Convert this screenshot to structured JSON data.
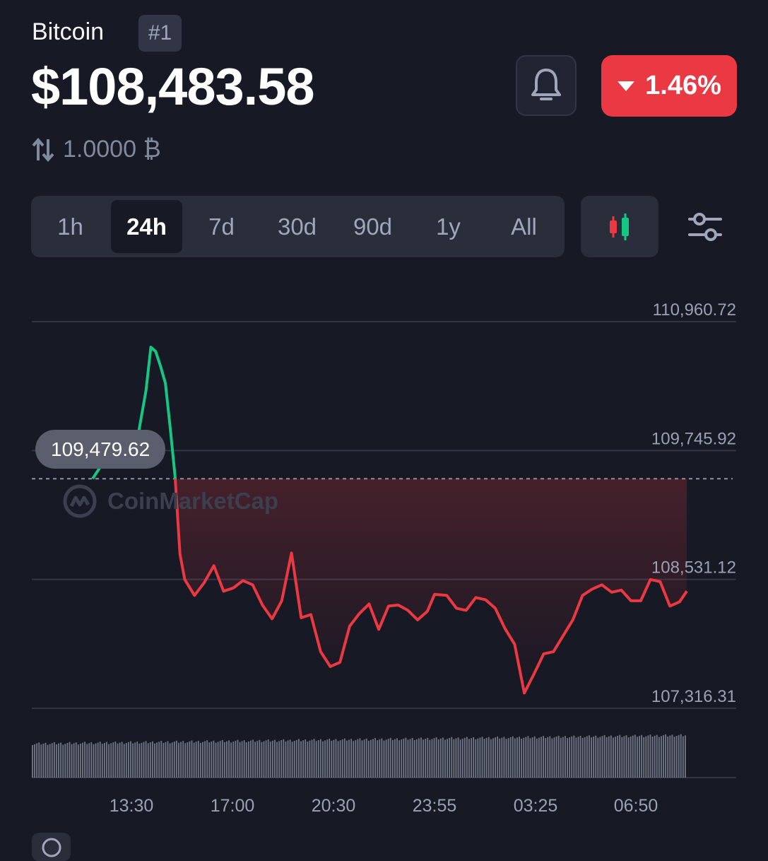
{
  "coin": {
    "name": "Bitcoin",
    "rank": "#1"
  },
  "price": {
    "value": "$108,483.58",
    "change_percent": "1.46%",
    "change_direction": "down"
  },
  "conversion": {
    "value": "1.0000 ₿",
    "icon": "swap-arrows-icon"
  },
  "timeframes": [
    {
      "label": "1h",
      "active": false
    },
    {
      "label": "24h",
      "active": true
    },
    {
      "label": "7d",
      "active": false
    },
    {
      "label": "30d",
      "active": false
    },
    {
      "label": "90d",
      "active": false
    },
    {
      "label": "1y",
      "active": false
    },
    {
      "label": "All",
      "active": false
    }
  ],
  "toolbar": {
    "alert_icon": "bell-icon",
    "chart_type_icon": "candlestick-icon",
    "settings_icon": "sliders-icon"
  },
  "colors": {
    "background": "#171924",
    "up": "#16c784",
    "down": "#ea3943",
    "grid": "#323546",
    "muted": "#9aa1b2"
  },
  "chart_data": {
    "type": "line",
    "open_price": 109479.62,
    "open_price_label": "109,479.62",
    "y_ticks": [
      110960.72,
      109745.92,
      108531.12,
      107316.31
    ],
    "y_tick_labels": [
      "110,960.72",
      "109,745.92",
      "108,531.12",
      "107,316.31"
    ],
    "ylim": [
      107316.31,
      110960.72
    ],
    "x_tick_labels": [
      "13:30",
      "17:00",
      "20:30",
      "23:55",
      "03:25",
      "06:50"
    ],
    "x": [
      "12:10",
      "12:30",
      "12:50",
      "13:10",
      "13:30",
      "13:45",
      "14:00",
      "14:10",
      "14:20",
      "14:30",
      "14:40",
      "14:50",
      "15:00",
      "15:10",
      "15:20",
      "15:40",
      "16:00",
      "16:20",
      "16:40",
      "17:00",
      "17:20",
      "17:40",
      "18:00",
      "18:20",
      "18:40",
      "19:00",
      "19:20",
      "19:40",
      "20:00",
      "20:20",
      "20:40",
      "21:00",
      "21:20",
      "21:40",
      "22:00",
      "22:20",
      "22:40",
      "23:00",
      "23:20",
      "23:40",
      "23:55",
      "00:20",
      "00:40",
      "01:00",
      "01:20",
      "01:40",
      "02:00",
      "02:20",
      "02:40",
      "03:00",
      "03:20",
      "03:40",
      "04:00",
      "04:20",
      "04:40",
      "05:00",
      "05:20",
      "05:40",
      "06:00",
      "06:20",
      "06:40",
      "07:00",
      "07:20",
      "07:40",
      "08:00",
      "08:20",
      "08:35"
    ],
    "values": [
      109480,
      109620,
      109690,
      109770,
      109840,
      109920,
      110310,
      110720,
      110680,
      110540,
      110380,
      109960,
      109500,
      108770,
      108530,
      108380,
      108500,
      108660,
      108420,
      108450,
      108520,
      108480,
      108290,
      108160,
      108330,
      108780,
      108170,
      108200,
      107850,
      107710,
      107750,
      108090,
      108210,
      108300,
      108060,
      108280,
      108290,
      108240,
      108150,
      108230,
      108390,
      108380,
      108260,
      108240,
      108360,
      108340,
      108260,
      108070,
      107920,
      107460,
      107640,
      107830,
      107850,
      108000,
      108150,
      108380,
      108440,
      108480,
      108410,
      108430,
      108330,
      108330,
      108530,
      108510,
      108280,
      108320,
      108420
    ],
    "volume_bars": 300
  }
}
